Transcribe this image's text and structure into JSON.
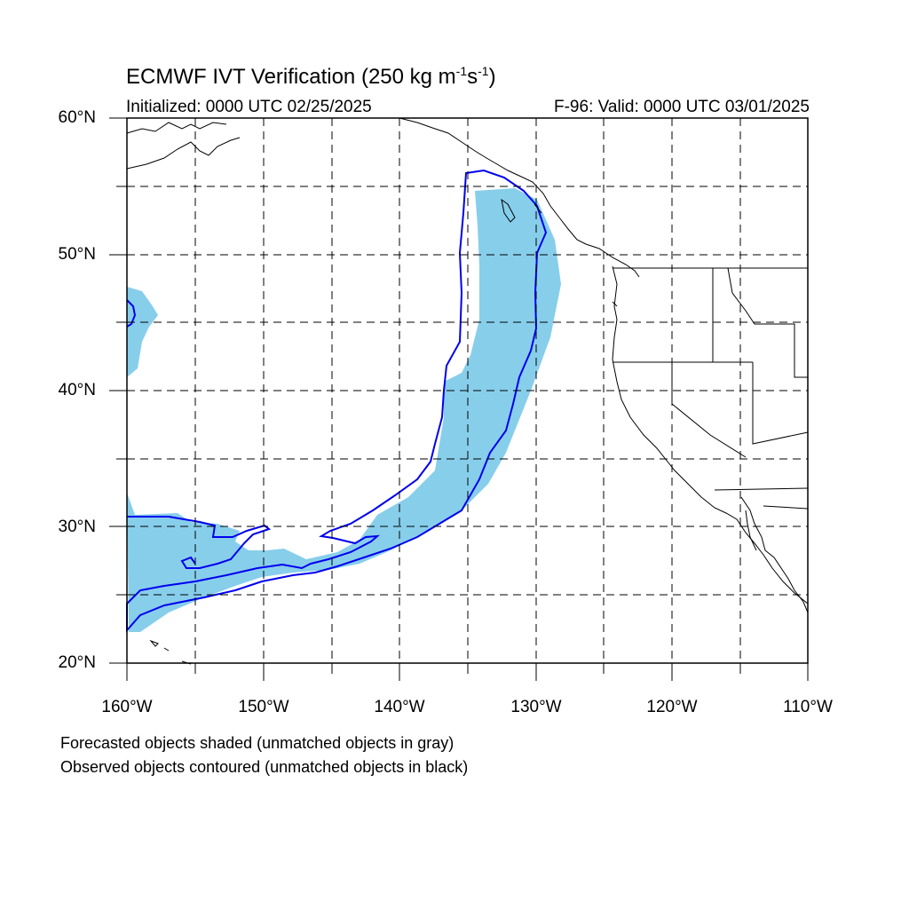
{
  "header": {
    "title_main": "ECMWF IVT Verification (250 kg m",
    "title_exp1": "-1",
    "title_mid": "s",
    "title_exp2": "-1",
    "title_end": ")",
    "initialized": "Initialized: 0000 UTC 02/25/2025",
    "valid": "F-96: Valid: 0000 UTC 03/01/2025"
  },
  "axes": {
    "lat_labels": [
      "60°N",
      "50°N",
      "40°N",
      "30°N",
      "20°N"
    ],
    "lon_labels": [
      "160°W",
      "150°W",
      "140°W",
      "130°W",
      "120°W",
      "110°W"
    ],
    "lat_range": [
      20,
      60
    ],
    "lon_range": [
      -160,
      -110
    ],
    "grid": "dashed every 5°"
  },
  "legend": {
    "line1": "Forecasted objects shaded (unmatched objects in gray)",
    "line2": "Observed objects contoured (unmatched objects in black)"
  },
  "colors": {
    "forecast_fill": "#87ceeb",
    "observed_contour": "#0000ee",
    "coastline": "#000000",
    "grid": "#000000"
  }
}
